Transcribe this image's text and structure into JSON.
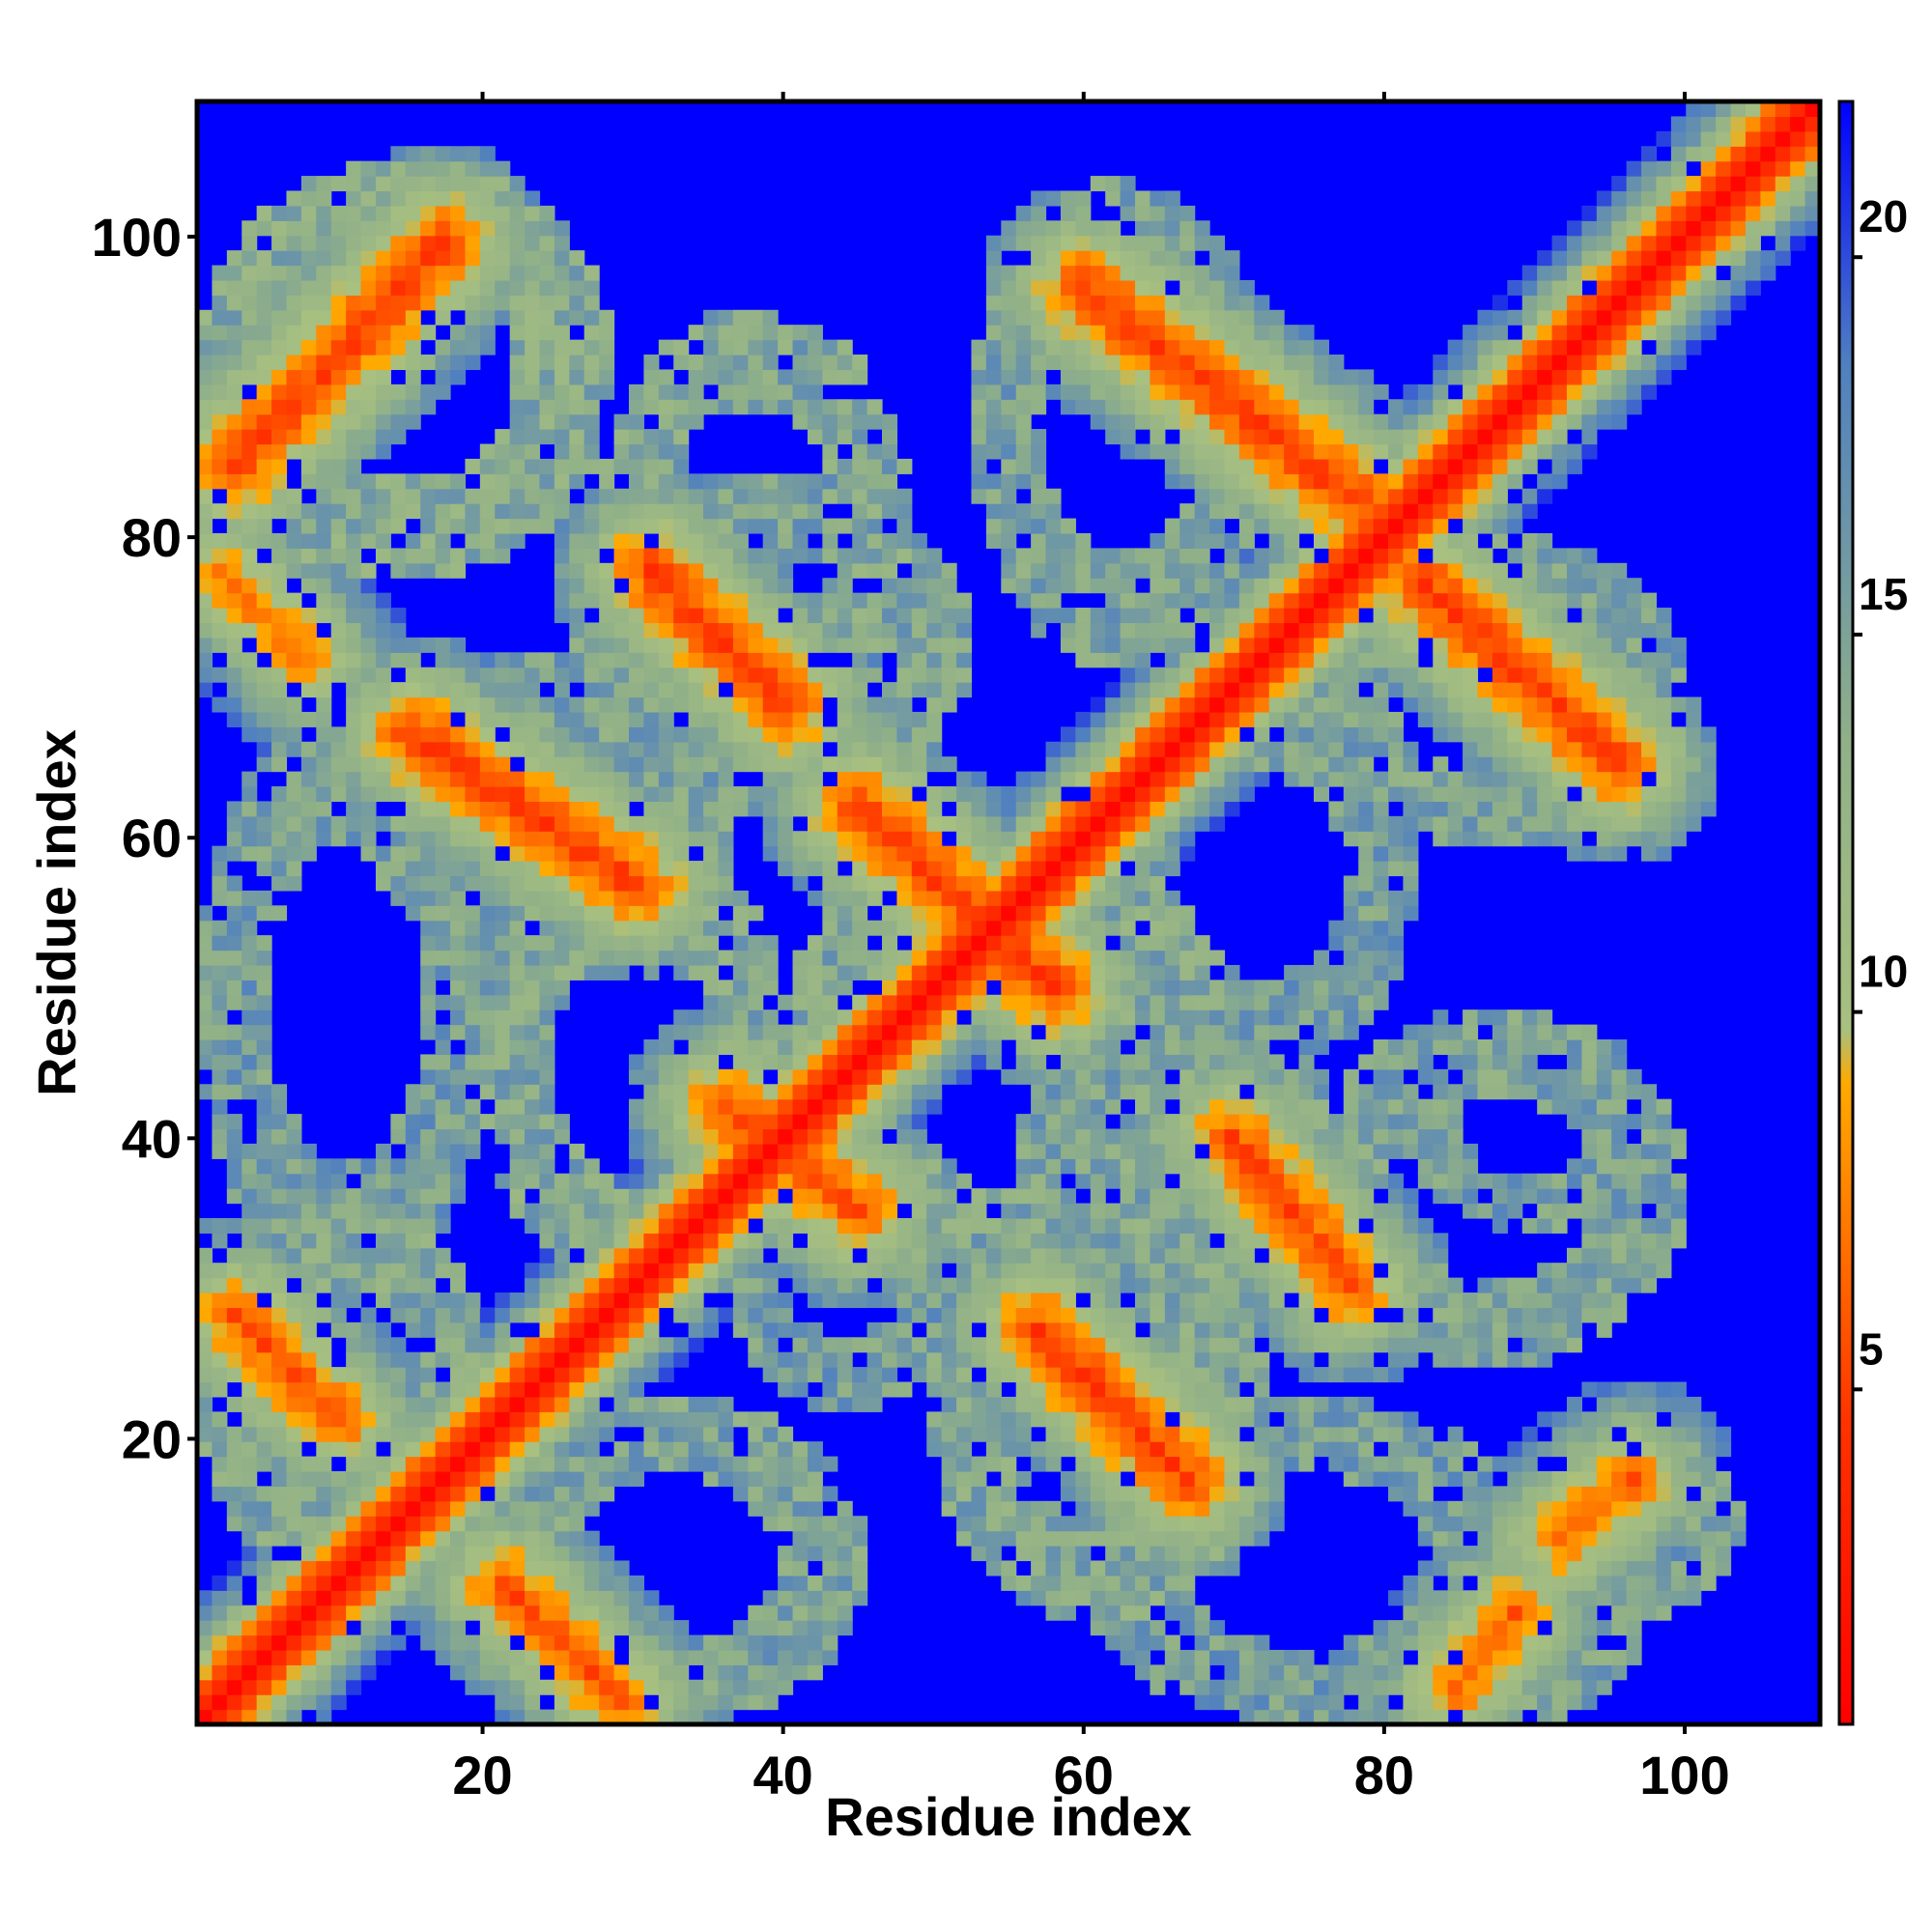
{
  "chart_data": {
    "type": "heatmap",
    "title": "",
    "xlabel": "Residue index",
    "ylabel": "Residue index",
    "n_residues": 109,
    "xlim": [
      1,
      109
    ],
    "ylim": [
      1,
      109
    ],
    "x_ticks": [
      {
        "value": 20,
        "label": "20"
      },
      {
        "value": 40,
        "label": "40"
      },
      {
        "value": 60,
        "label": "60"
      },
      {
        "value": 80,
        "label": "80"
      },
      {
        "value": 100,
        "label": "100"
      }
    ],
    "y_ticks": [
      {
        "value": 20,
        "label": "20"
      },
      {
        "value": 40,
        "label": "40"
      },
      {
        "value": 60,
        "label": "60"
      },
      {
        "value": 80,
        "label": "80"
      },
      {
        "value": 100,
        "label": "100"
      }
    ],
    "colorbar": {
      "range": [
        0,
        21.5
      ],
      "ticks": [
        {
          "value": 5,
          "label": "5"
        },
        {
          "value": 10,
          "label": "10"
        },
        {
          "value": 15,
          "label": "15"
        },
        {
          "value": 20,
          "label": "20"
        }
      ],
      "colors": [
        {
          "value": 0,
          "color": "#ff0000"
        },
        {
          "value": 4,
          "color": "#ff3300"
        },
        {
          "value": 8.5,
          "color": "#ffaa00"
        },
        {
          "value": 9.2,
          "color": "#a8c080"
        },
        {
          "value": 13,
          "color": "#90b088"
        },
        {
          "value": 18,
          "color": "#5080c0"
        },
        {
          "value": 21.5,
          "color": "#0000ff"
        }
      ]
    },
    "background_color": "#0000ff",
    "value_description": "pairwise residue distance map, values clipped at 21",
    "diagonal_band": {
      "values_by_offset": [
        0.5,
        3.2,
        5.0,
        7.5,
        10.0,
        12.5,
        15.0,
        17.0,
        19.0
      ]
    },
    "contact_ridges": [
      {
        "start": [
          3,
          85
        ],
        "end": [
          17,
          100
        ],
        "min_value": 4.0
      },
      {
        "start": [
          2,
          78
        ],
        "end": [
          8,
          72
        ],
        "min_value": 6.0
      },
      {
        "start": [
          15,
          67
        ],
        "end": [
          30,
          57
        ],
        "min_value": 4.0
      },
      {
        "start": [
          31,
          78
        ],
        "end": [
          40,
          69
        ],
        "min_value": 4.0
      },
      {
        "start": [
          45,
          62
        ],
        "end": [
          58,
          50
        ],
        "min_value": 4.0
      },
      {
        "start": [
          36,
          42
        ],
        "end": [
          45,
          35
        ],
        "min_value": 4.5
      },
      {
        "start": [
          60,
          97
        ],
        "end": [
          78,
          83
        ],
        "min_value": 4.0
      },
      {
        "start": [
          83,
          77
        ],
        "end": [
          96,
          65
        ],
        "min_value": 4.0
      },
      {
        "start": [
          70,
          40
        ],
        "end": [
          78,
          30
        ],
        "min_value": 4.5
      },
      {
        "start": [
          57,
          27
        ],
        "end": [
          67,
          17
        ],
        "min_value": 4.0
      },
      {
        "start": [
          3,
          28
        ],
        "end": [
          10,
          21
        ],
        "min_value": 5.0
      },
      {
        "start": [
          21,
          10
        ],
        "end": [
          29,
          2
        ],
        "min_value": 5.0
      },
      {
        "start": [
          85,
          3
        ],
        "end": [
          89,
          8
        ],
        "min_value": 5.5
      },
      {
        "start": [
          92,
          13
        ],
        "end": [
          97,
          17
        ],
        "min_value": 5.5
      }
    ],
    "neighborhood_regions": [
      {
        "x": [
          1,
          28
        ],
        "y": [
          78,
          105
        ],
        "value": 13.5
      },
      {
        "x": [
          28,
          48
        ],
        "y": [
          68,
          95
        ],
        "value": 14.0
      },
      {
        "x": [
          53,
          72
        ],
        "y": [
          72,
          104
        ],
        "value": 14.5
      },
      {
        "x": [
          75,
          100
        ],
        "y": [
          60,
          80
        ],
        "value": 14.5
      },
      {
        "x": [
          12,
          36
        ],
        "y": [
          52,
          72
        ],
        "value": 14.5
      },
      {
        "x": [
          1,
          20
        ],
        "y": [
          30,
          68
        ],
        "value": 15.0
      },
      {
        "x": [
          20,
          40
        ],
        "y": [
          30,
          60
        ],
        "value": 14.0
      },
      {
        "x": [
          40,
          70
        ],
        "y": [
          30,
          60
        ],
        "value": 14.0
      },
      {
        "x": [
          62,
          82
        ],
        "y": [
          45,
          70
        ],
        "value": 15.0
      },
      {
        "x": [
          75,
          100
        ],
        "y": [
          25,
          48
        ],
        "value": 14.5
      },
      {
        "x": [
          50,
          72
        ],
        "y": [
          8,
          35
        ],
        "value": 14.0
      },
      {
        "x": [
          1,
          20
        ],
        "y": [
          10,
          35
        ],
        "value": 14.0
      },
      {
        "x": [
          20,
          45
        ],
        "y": [
          1,
          22
        ],
        "value": 14.5
      },
      {
        "x": [
          60,
          90
        ],
        "y": [
          1,
          22
        ],
        "value": 15.0
      },
      {
        "x": [
          90,
          104
        ],
        "y": [
          8,
          20
        ],
        "value": 14.5
      },
      {
        "x": [
          83,
          97
        ],
        "y": [
          1,
          12
        ],
        "value": 14.5
      },
      {
        "x": [
          36,
          52
        ],
        "y": [
          22,
          42
        ],
        "value": 15.0
      },
      {
        "x": [
          26,
          52
        ],
        "y": [
          62,
          84
        ],
        "value": 14.5
      },
      {
        "x": [
          56,
          78
        ],
        "y": [
          30,
          48
        ],
        "value": 14.5
      },
      {
        "x": [
          82,
          98
        ],
        "y": [
          34,
          48
        ],
        "value": 15.0
      }
    ]
  }
}
